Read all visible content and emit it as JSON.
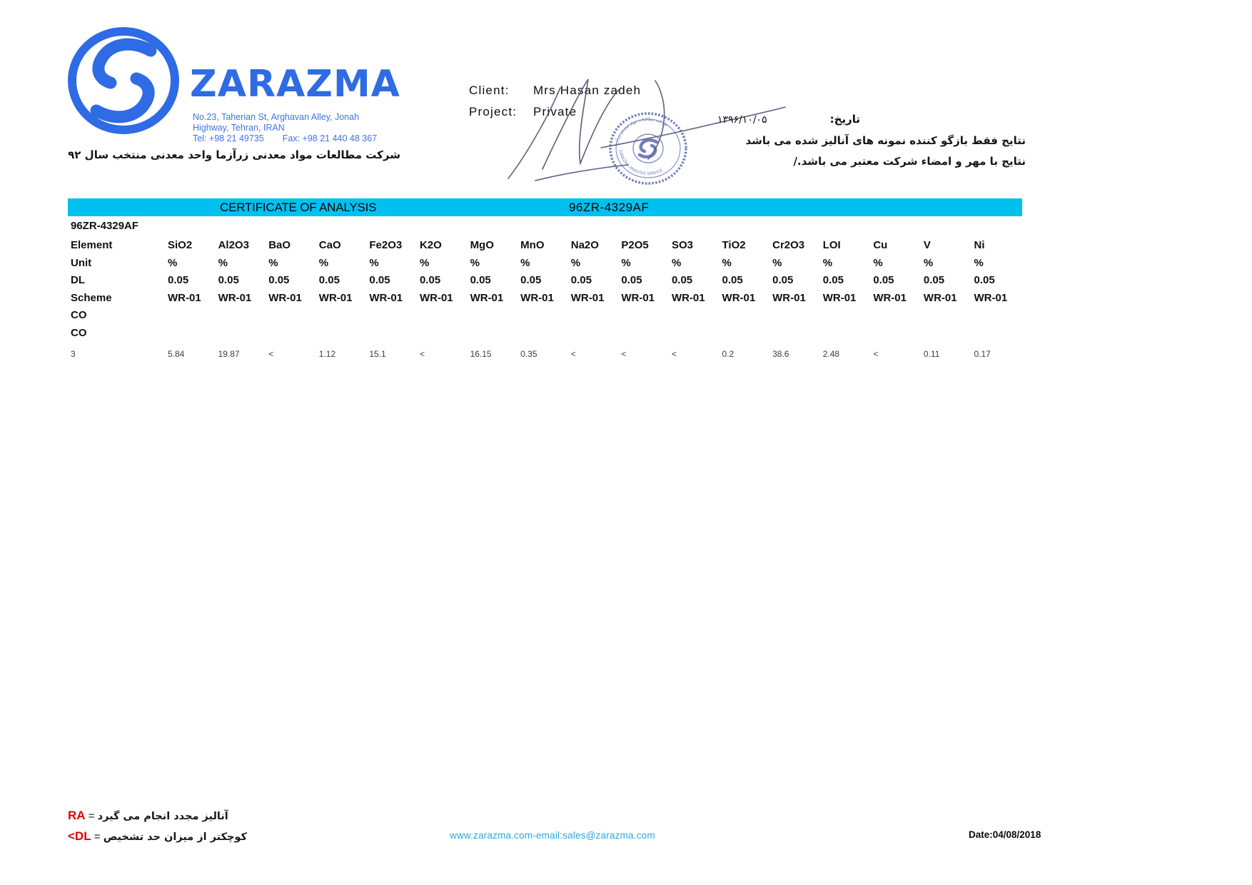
{
  "brand": {
    "name": "ZARAZMA",
    "address_line1": "No.23, Taherian St, Arghavan Alley, Jonah",
    "address_line2": "Highway, Tehran, IRAN",
    "tel": "Tel: +98 21 49735",
    "fax": "Fax: +98 21 440 48 367",
    "tagline_fa": "شرکت مطالعات مواد معدنی زرآزما واحد معدنی منتخب سال ۹۲"
  },
  "client_block": {
    "client_label": "Client:",
    "client_value": "Mrs.Hasan zadeh",
    "project_label": "Project:",
    "project_value": "Private"
  },
  "date_block": {
    "label_fa": "تاریخ:",
    "value_fa": "۱۳۹۶/۱۰/۰۵"
  },
  "notes_fa": {
    "line1": "نتایج فقط بازگو کننده نمونه های آنالیز شده می باشد",
    "line2": "نتایج با مهر و امضاء شرکت معتبر می باشد./"
  },
  "stamp": {
    "text_top_fa": "شرکت مطالعات مواد معدنی زرآزما",
    "text_bottom": "ZARAZMA ANALYSIS SERVICE"
  },
  "header_bar": {
    "title": "CERTIFICATE OF ANALYSIS",
    "report_no": "96ZR-4329AF"
  },
  "table": {
    "sample_id": "96ZR-4329AF",
    "header_rows": [
      {
        "label": "Element",
        "values": [
          "SiO2",
          "Al2O3",
          "BaO",
          "CaO",
          "Fe2O3",
          "K2O",
          "MgO",
          "MnO",
          "Na2O",
          "P2O5",
          "SO3",
          "TiO2",
          "Cr2O3",
          "LOI",
          "Cu",
          "V",
          "Ni"
        ]
      },
      {
        "label": "Unit",
        "values": [
          "%",
          "%",
          "%",
          "%",
          "%",
          "%",
          "%",
          "%",
          "%",
          "%",
          "%",
          "%",
          "%",
          "%",
          "%",
          "%",
          "%"
        ]
      },
      {
        "label": "DL",
        "values": [
          "0.05",
          "0.05",
          "0.05",
          "0.05",
          "0.05",
          "0.05",
          "0.05",
          "0.05",
          "0.05",
          "0.05",
          "0.05",
          "0.05",
          "0.05",
          "0.05",
          "0.05",
          "0.05",
          "0.05"
        ]
      },
      {
        "label": "Scheme",
        "values": [
          "WR-01",
          "WR-01",
          "WR-01",
          "WR-01",
          "WR-01",
          "WR-01",
          "WR-01",
          "WR-01",
          "WR-01",
          "WR-01",
          "WR-01",
          "WR-01",
          "WR-01",
          "WR-01",
          "WR-01",
          "WR-01",
          "WR-01"
        ]
      },
      {
        "label": "CO",
        "values": []
      },
      {
        "label": "CO",
        "values": []
      }
    ],
    "data_rows": [
      {
        "label": "3",
        "values": [
          "5.84",
          "19.87",
          "<",
          "1.12",
          "15.1",
          "<",
          "16.15",
          "0.35",
          "<",
          "<",
          "<",
          "0.2",
          "38.6",
          "2.48",
          "<",
          "0.11",
          "0.17"
        ]
      }
    ]
  },
  "footer": {
    "ra_code": "RA",
    "equals": "=",
    "ra_text_fa": "آنالیز مجدد انجام می گیرد",
    "dl_code": "<DL",
    "dl_text_fa": "کوچکتر از میزان حد تشخیص",
    "website": "www.zarazma.com-email:sales@zarazma.com",
    "date": "Date:04/08/2018"
  },
  "colors": {
    "brand_blue": "#2e6be4",
    "bar_cyan": "#00c0f0",
    "link_blue": "#2aa9dd",
    "accent_red": "#e00000",
    "stamp_blue": "#4d5ca6",
    "signature_ink": "#41416e"
  }
}
